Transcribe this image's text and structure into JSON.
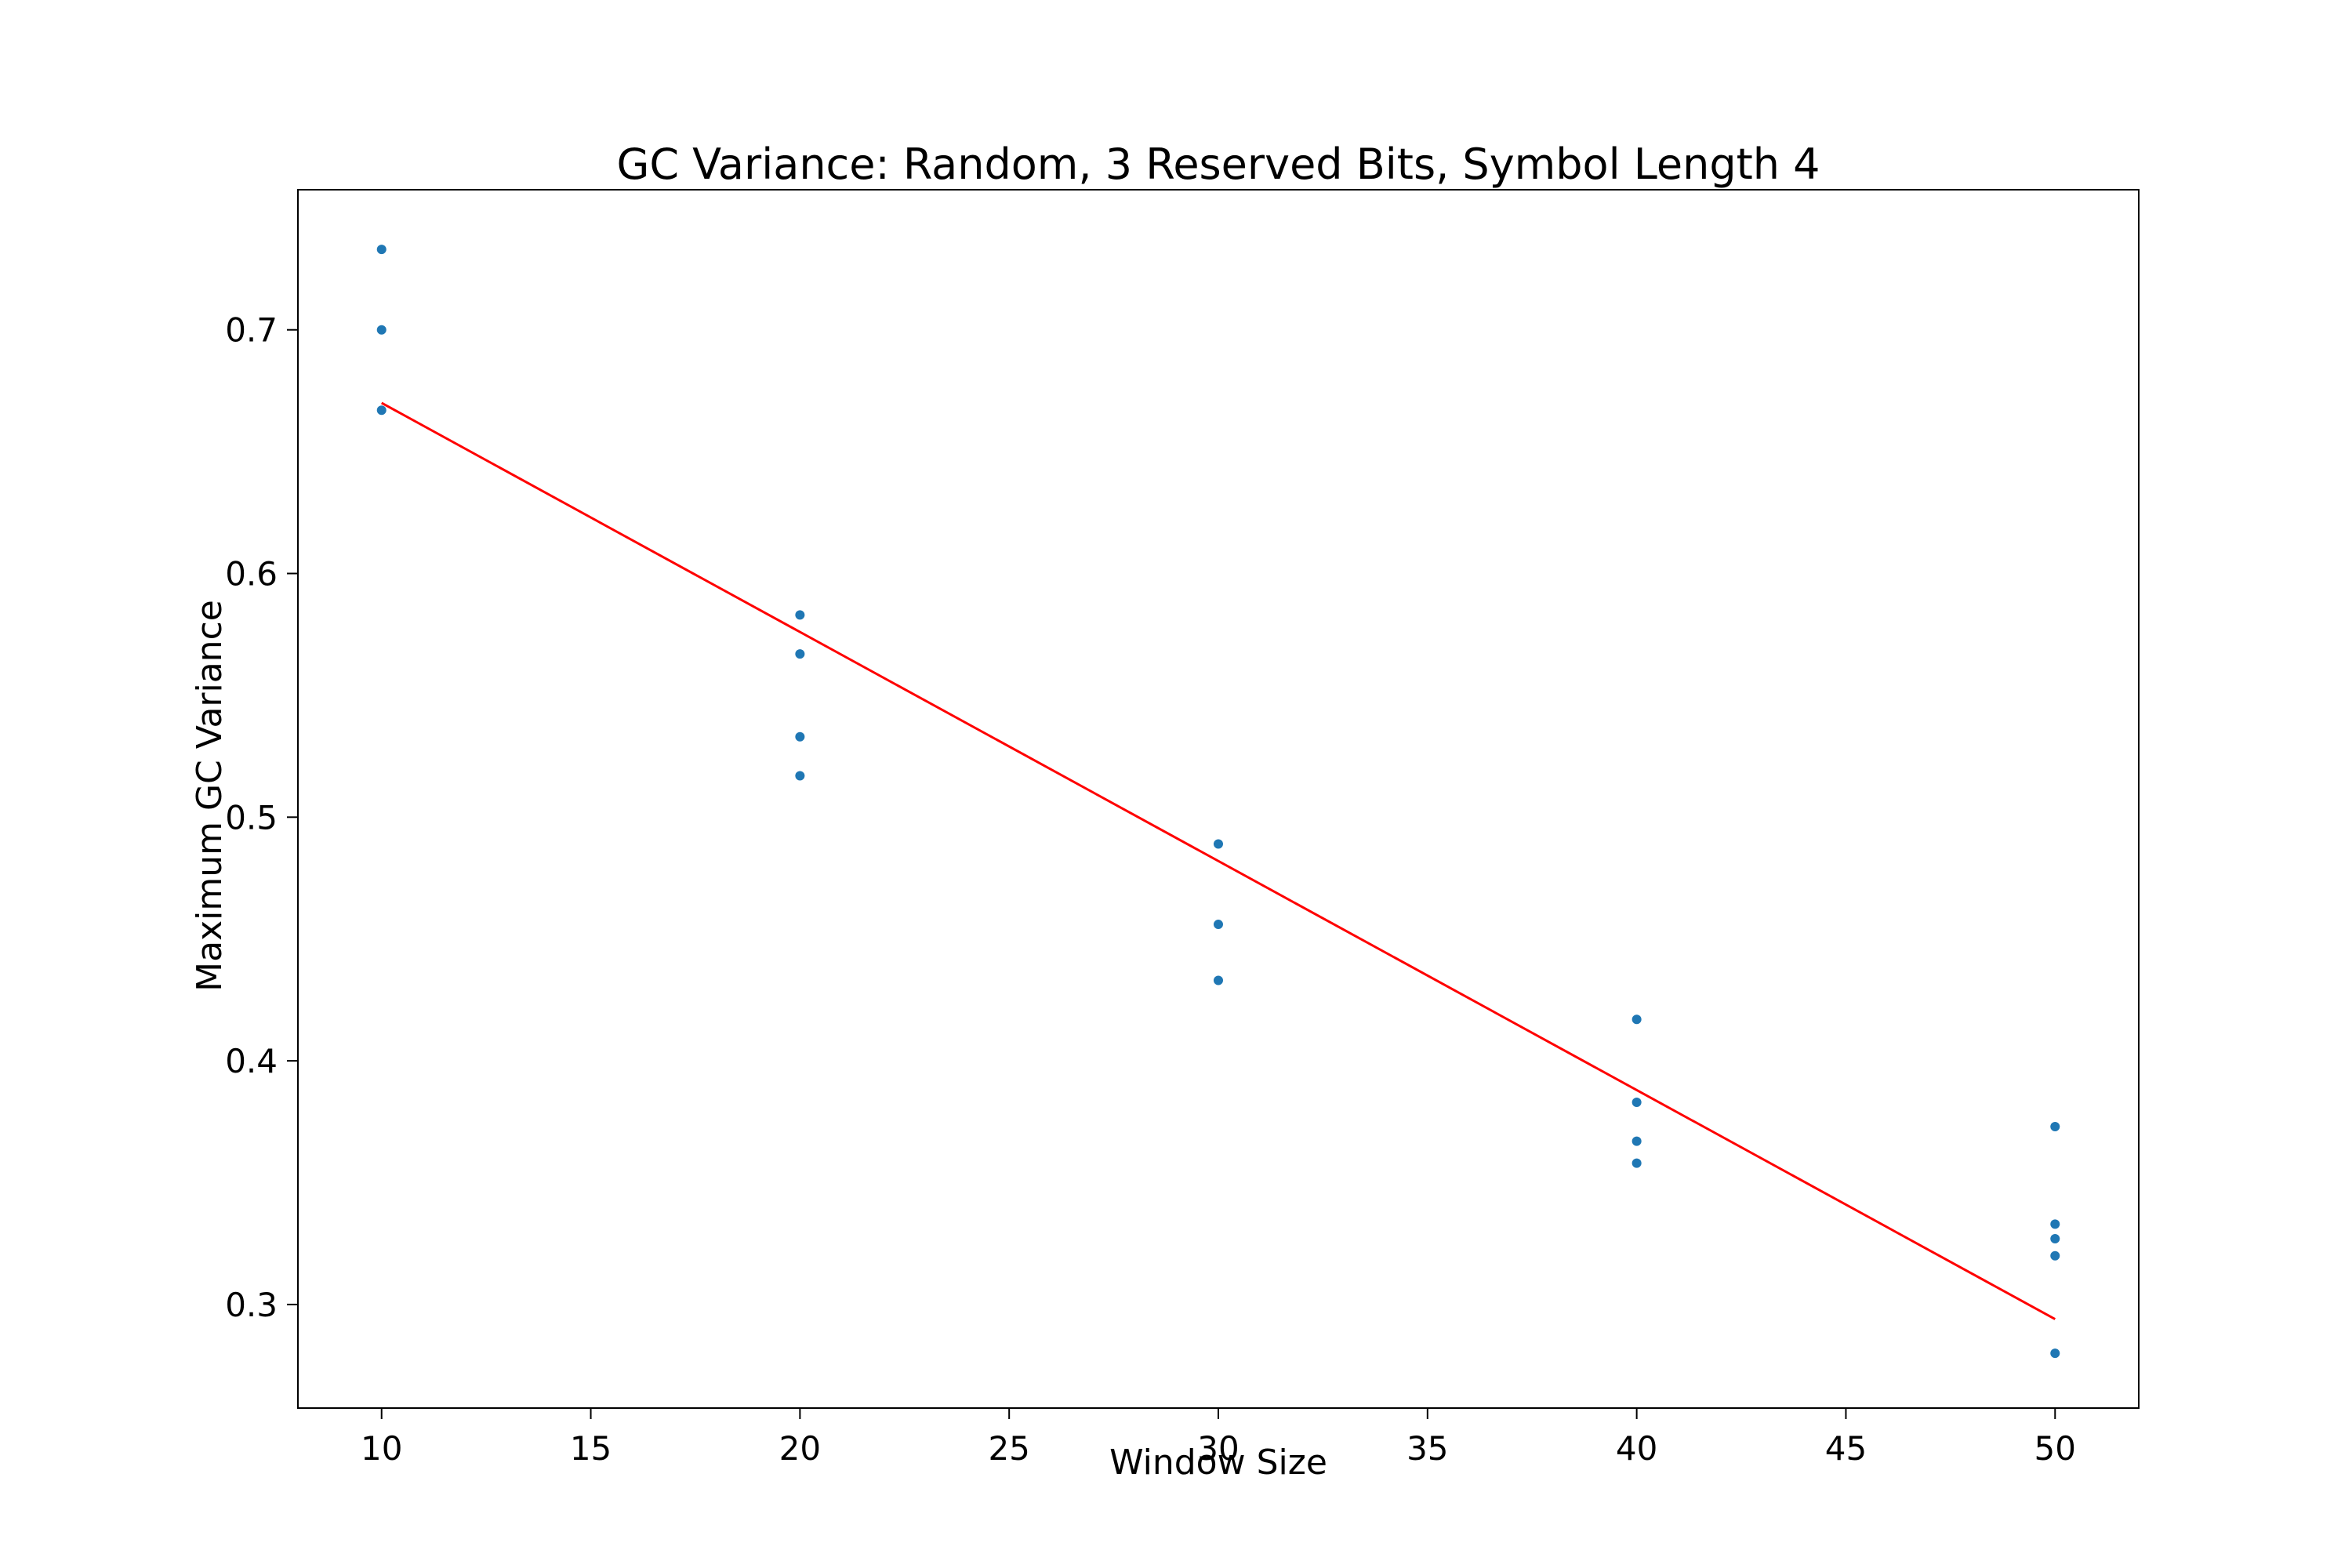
{
  "chart_data": {
    "type": "scatter",
    "title": "GC Variance: Random, 3 Reserved Bits, Symbol Length 4",
    "xlabel": "Window Size",
    "ylabel": "Maximum GC Variance",
    "xlim": [
      8,
      52
    ],
    "ylim": [
      0.2575,
      0.7575
    ],
    "xticks": [
      10,
      15,
      20,
      25,
      30,
      35,
      40,
      45,
      50
    ],
    "xtick_labels": [
      "10",
      "15",
      "20",
      "25",
      "30",
      "35",
      "40",
      "45",
      "50"
    ],
    "yticks": [
      0.3,
      0.4,
      0.5,
      0.6,
      0.7
    ],
    "ytick_labels": [
      "0.3",
      "0.4",
      "0.5",
      "0.6",
      "0.7"
    ],
    "grid": false,
    "series": [
      {
        "name": "points",
        "type": "scatter",
        "color": "#1f77b4",
        "x": [
          10,
          10,
          10,
          20,
          20,
          20,
          20,
          30,
          30,
          30,
          40,
          40,
          40,
          40,
          50,
          50,
          50,
          50,
          50
        ],
        "y": [
          0.733,
          0.7,
          0.667,
          0.583,
          0.567,
          0.533,
          0.517,
          0.489,
          0.456,
          0.433,
          0.417,
          0.383,
          0.367,
          0.358,
          0.373,
          0.333,
          0.327,
          0.32,
          0.28
        ]
      },
      {
        "name": "fit",
        "type": "line",
        "color": "#ff0000",
        "x": [
          10,
          50
        ],
        "y": [
          0.67,
          0.294
        ]
      }
    ]
  }
}
